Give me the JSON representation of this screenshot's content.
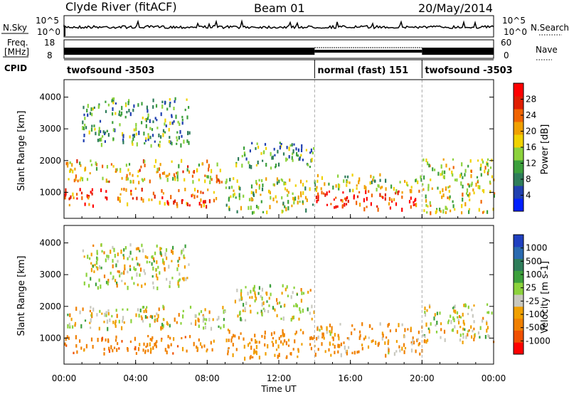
{
  "header": {
    "site": "Clyde River (fitACF)",
    "beam": "Beam 01",
    "date": "20/May/2014"
  },
  "top_panels": {
    "nsky_label": "N.Sky",
    "nsky_ticks": [
      "10^5",
      "10^0"
    ],
    "nsearch_label": "N.Search",
    "nsearch_ticks": [
      "10^5",
      "10^0"
    ],
    "freq_label_1": "Freq.",
    "freq_label_2": "[MHz]",
    "freq_ticks": [
      "18",
      "8"
    ],
    "nave_label": "Nave",
    "nave_ticks": [
      "60",
      "0"
    ],
    "cpid_label": "CPID"
  },
  "cpid_segments": [
    {
      "name": "twofsound -3503",
      "start_hour": 0,
      "end_hour": 14
    },
    {
      "name": "normal (fast) 151",
      "start_hour": 14,
      "end_hour": 20
    },
    {
      "name": "twofsound -3503",
      "start_hour": 20,
      "end_hour": 24
    }
  ],
  "colors": {
    "power": [
      "#0020ff",
      "#2040b0",
      "#2e7d5a",
      "#3ca03c",
      "#8cd23c",
      "#f0d200",
      "#f0a000",
      "#f06400",
      "#e01e00",
      "#ff0000"
    ],
    "velocity": [
      "#2040c0",
      "#2a6ab0",
      "#2e7d5a",
      "#3ca03c",
      "#8cd23c",
      "#c8c8be",
      "#f0a000",
      "#f08000",
      "#f05000",
      "#ff0000"
    ]
  },
  "chart_data": [
    {
      "type": "heatmap",
      "title": "",
      "xlabel": "",
      "ylabel": "Slant Range [km]",
      "x_ticks": [
        "00:00",
        "04:00",
        "08:00",
        "12:00",
        "16:00",
        "20:00",
        "00:00"
      ],
      "xlim_hours": [
        0,
        24
      ],
      "ylim": [
        180,
        4550
      ],
      "y_ticks": [
        1000,
        2000,
        3000,
        4000
      ],
      "colorbar": {
        "label": "Power [dB]",
        "ticks": [
          "28",
          "24",
          "20",
          "16",
          "12",
          "8",
          "4"
        ],
        "range": [
          0,
          30
        ]
      },
      "scatter_bands": [
        {
          "t0": 0,
          "t1": 8.5,
          "r0": 600,
          "r1": 1150,
          "level": 24
        },
        {
          "t0": 0,
          "t1": 9,
          "r0": 1350,
          "r1": 2050,
          "level": 18
        },
        {
          "t0": 1,
          "t1": 7,
          "r0": 2500,
          "r1": 4000,
          "level": 10
        },
        {
          "t0": 9,
          "t1": 14,
          "r0": 400,
          "r1": 1500,
          "level": 14
        },
        {
          "t0": 9.5,
          "t1": 14,
          "r0": 1800,
          "r1": 2600,
          "level": 10
        },
        {
          "t0": 14,
          "t1": 20,
          "r0": 500,
          "r1": 1100,
          "level": 26
        },
        {
          "t0": 14,
          "t1": 20,
          "r0": 1100,
          "r1": 1600,
          "level": 14
        },
        {
          "t0": 20,
          "t1": 24,
          "r0": 400,
          "r1": 2100,
          "level": 16
        }
      ]
    },
    {
      "type": "heatmap",
      "title": "",
      "xlabel": "Time UT",
      "ylabel": "Slant Range [km]",
      "x_ticks": [
        "00:00",
        "04:00",
        "08:00",
        "12:00",
        "16:00",
        "20:00",
        "00:00"
      ],
      "xlim_hours": [
        0,
        24
      ],
      "ylim": [
        180,
        4550
      ],
      "y_ticks": [
        1000,
        2000,
        3000,
        4000
      ],
      "colorbar": {
        "label": "Velocity [m s-1]",
        "ticks": [
          "1000",
          "500",
          "100",
          "25",
          "-25",
          "-100",
          "-500",
          "-1000"
        ],
        "range": [
          -1000,
          1000
        ]
      },
      "scatter_bands": [
        {
          "t0": 0,
          "t1": 9,
          "r0": 1350,
          "r1": 2050,
          "level": 0
        },
        {
          "t0": 0,
          "t1": 8.5,
          "r0": 550,
          "r1": 1100,
          "level": -200
        },
        {
          "t0": 1,
          "t1": 7,
          "r0": 2600,
          "r1": 4000,
          "level": 0
        },
        {
          "t0": 9.5,
          "t1": 14,
          "r0": 1600,
          "r1": 2700,
          "level": 0
        },
        {
          "t0": 9,
          "t1": 14,
          "r0": 400,
          "r1": 1300,
          "level": -150
        },
        {
          "t0": 14,
          "t1": 20,
          "r0": 500,
          "r1": 1500,
          "level": -100
        },
        {
          "t0": 20,
          "t1": 24,
          "r0": 900,
          "r1": 2100,
          "level": 0
        }
      ]
    }
  ]
}
